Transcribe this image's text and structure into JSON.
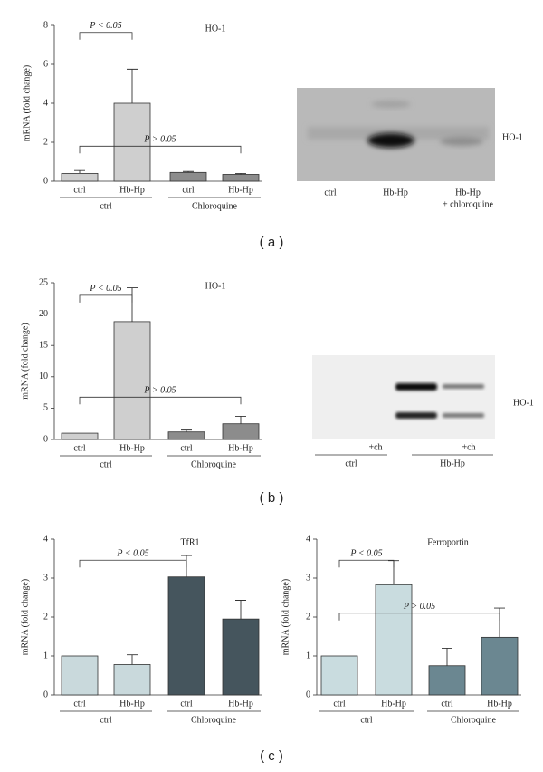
{
  "chart_data": [
    {
      "type": "bar",
      "title": "HO-1",
      "ylabel": "mRNA (fold change)",
      "categories": [
        "ctrl",
        "Hb-Hp",
        "ctrl",
        "Hb-Hp"
      ],
      "groups": [
        "ctrl",
        "Chloroquine"
      ],
      "values": [
        0.4,
        4.0,
        0.45,
        0.35
      ],
      "errors": [
        0.15,
        1.75,
        0.05,
        0.05
      ],
      "colors": [
        "#cfcfcf",
        "#cfcfcf",
        "#8c8c8c",
        "#8c8c8c"
      ],
      "ylim": [
        0,
        8
      ],
      "yticks": [
        0,
        2,
        4,
        6,
        8
      ],
      "annotations": [
        "P < 0.05",
        "P > 0.05"
      ]
    },
    {
      "type": "bar",
      "title": "HO-1",
      "ylabel": "mRNA (fold change)",
      "categories": [
        "ctrl",
        "Hb-Hp",
        "ctrl",
        "Hb-Hp"
      ],
      "groups": [
        "ctrl",
        "Chloroquine"
      ],
      "values": [
        1.0,
        18.8,
        1.2,
        2.5
      ],
      "errors": [
        0,
        5.4,
        0.3,
        1.2
      ],
      "colors": [
        "#cfcfcf",
        "#cfcfcf",
        "#8c8c8c",
        "#8c8c8c"
      ],
      "ylim": [
        0,
        25
      ],
      "yticks": [
        0,
        5,
        10,
        15,
        20,
        25
      ],
      "annotations": [
        "P < 0.05",
        "P > 0.05"
      ]
    },
    {
      "type": "bar",
      "title": "TfR1",
      "ylabel": "mRNA (fold change)",
      "categories": [
        "ctrl",
        "Hb-Hp",
        "ctrl",
        "Hb-Hp"
      ],
      "groups": [
        "ctrl",
        "Chloroquine"
      ],
      "values": [
        1.0,
        0.78,
        3.03,
        1.95
      ],
      "errors": [
        0,
        0.25,
        0.55,
        0.48
      ],
      "colors": [
        "#c9d9dc",
        "#c9d9dc",
        "#45555d",
        "#45555d"
      ],
      "ylim": [
        0,
        4
      ],
      "yticks": [
        0,
        1,
        2,
        3,
        4
      ],
      "annotations": [
        "P < 0.05"
      ]
    },
    {
      "type": "bar",
      "title": "Ferroportin",
      "ylabel": "mRNA (fold change)",
      "categories": [
        "ctrl",
        "Hb-Hp",
        "ctrl",
        "Hb-Hp"
      ],
      "groups": [
        "ctrl",
        "Chloroquine"
      ],
      "values": [
        1.0,
        2.83,
        0.75,
        1.48
      ],
      "errors": [
        0,
        0.62,
        0.45,
        0.75
      ],
      "colors": [
        "#c9dcdf",
        "#c9dcdf",
        "#6b8791",
        "#6b8791"
      ],
      "ylim": [
        0,
        4
      ],
      "yticks": [
        0,
        1,
        2,
        3,
        4
      ],
      "annotations": [
        "P < 0.05",
        "P > 0.05"
      ]
    }
  ],
  "gels": [
    {
      "band": "HO-1",
      "lanes": [
        "ctrl",
        "Hb-Hp",
        "Hb-Hp",
        "+ chloroquine"
      ]
    },
    {
      "band": "HO-1",
      "lanes": [
        "+ch",
        "+ch"
      ],
      "groups": [
        "ctrl",
        "Hb-Hp"
      ]
    }
  ],
  "panel_labels": [
    "( a )",
    "( b )",
    "( c )"
  ]
}
